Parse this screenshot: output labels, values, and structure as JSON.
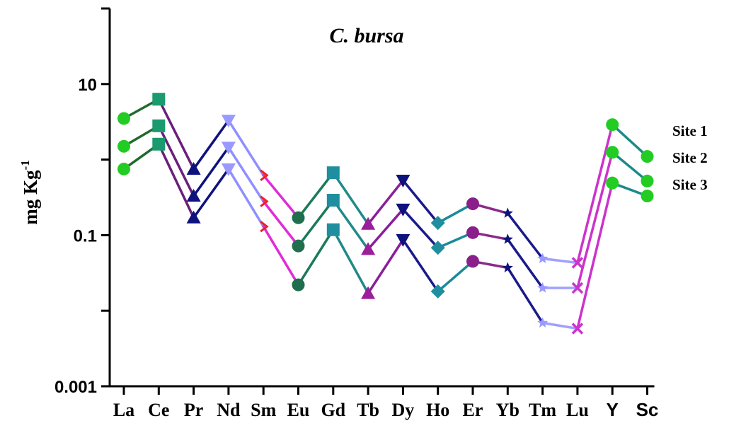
{
  "chart_data": {
    "type": "line",
    "title": "C. bursa",
    "ylabel": "mg Kg",
    "ylabel_superscript": "-1",
    "xlabel": "",
    "yscale": "log",
    "ylim": [
      0.001,
      100
    ],
    "yticks": [
      {
        "value": 10,
        "label": "10"
      },
      {
        "value": 0.1,
        "label": "0.1"
      },
      {
        "value": 0.001,
        "label": "0.001"
      }
    ],
    "categories": [
      "La",
      "Ce",
      "Pr",
      "Nd",
      "Sm",
      "Eu",
      "Gd",
      "Tb",
      "Dy",
      "Ho",
      "Er",
      "Yb",
      "Tm",
      "Lu",
      "Y",
      "Sc"
    ],
    "series": [
      {
        "name": "Site 1",
        "values": [
          3.5,
          6.3,
          0.75,
          3.3,
          0.62,
          0.17,
          0.67,
          0.14,
          0.53,
          0.145,
          0.26,
          0.195,
          0.049,
          0.043,
          2.9,
          1.1
        ]
      },
      {
        "name": "Site 2",
        "values": [
          1.5,
          2.8,
          0.33,
          1.45,
          0.28,
          0.072,
          0.29,
          0.065,
          0.22,
          0.068,
          0.108,
          0.088,
          0.02,
          0.02,
          1.25,
          0.52
        ]
      },
      {
        "name": "Site 3",
        "values": [
          0.75,
          1.6,
          0.17,
          0.75,
          0.13,
          0.022,
          0.118,
          0.017,
          0.087,
          0.018,
          0.045,
          0.037,
          0.0069,
          0.0058,
          0.49,
          0.33
        ]
      }
    ],
    "segment_colors": [
      "#1f6b2e",
      "#6b1f7a",
      "#0e127c",
      "#8f8fff",
      "#e02bd8",
      "#1a7a5c",
      "#1f8a8a",
      "#8a1f9a",
      "#1a1a8a",
      "#1a8a9a",
      "#8a2a8a",
      "#1a1a8a",
      "#a0a0ff",
      "#cc33cc",
      "#1a8a8a"
    ],
    "point_markers": [
      {
        "shape": "circle",
        "color": "#22cc22"
      },
      {
        "shape": "square",
        "color": "#1a9a6e"
      },
      {
        "shape": "triangle-up",
        "color": "#0e127c"
      },
      {
        "shape": "triangle-down",
        "color": "#9999ff"
      },
      {
        "shape": "tick",
        "color": "#ee2222"
      },
      {
        "shape": "circle",
        "color": "#1f6e4e"
      },
      {
        "shape": "square",
        "color": "#1f8f9f"
      },
      {
        "shape": "triangle-up",
        "color": "#9a1f9a"
      },
      {
        "shape": "triangle-down",
        "color": "#0e127c"
      },
      {
        "shape": "diamond",
        "color": "#1f8f9f"
      },
      {
        "shape": "circle",
        "color": "#8a1f8a"
      },
      {
        "shape": "star",
        "color": "#0e127c"
      },
      {
        "shape": "star",
        "color": "#9999ff"
      },
      {
        "shape": "cross",
        "color": "#cc33cc"
      },
      {
        "shape": "circle",
        "color": "#22cc22"
      },
      {
        "shape": "circle",
        "color": "#22cc22"
      }
    ],
    "legend_placement": "right",
    "grid": false
  }
}
